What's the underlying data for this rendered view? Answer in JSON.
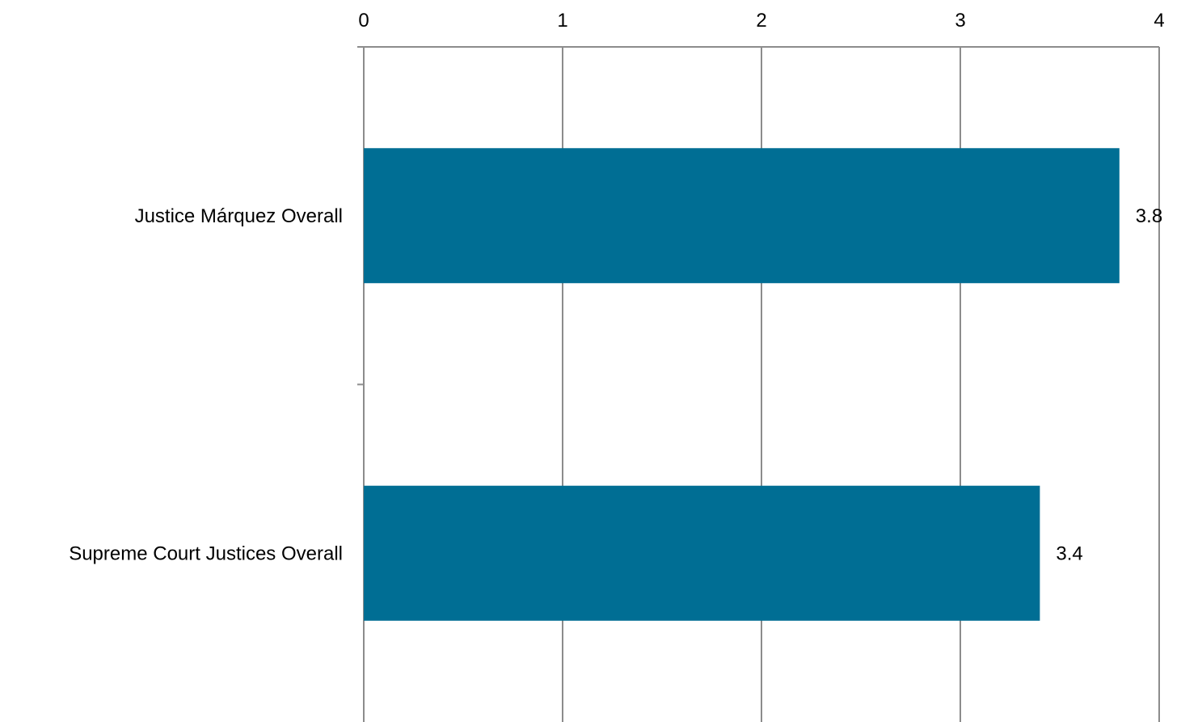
{
  "chart_data": {
    "type": "bar",
    "orientation": "horizontal",
    "categories": [
      "Justice Márquez Overall",
      "Supreme Court Justices Overall"
    ],
    "values": [
      3.8,
      3.4
    ],
    "data_labels": [
      "3.8",
      "3.4"
    ],
    "title": "",
    "xlabel": "",
    "ylabel": "",
    "xlim": [
      0,
      4
    ],
    "xticks": [
      "0",
      "1",
      "2",
      "3",
      "4"
    ],
    "x_axis_position": "top",
    "grid": true,
    "legend": "none",
    "bar_color": "#006e94",
    "grid_color": "#8c8c8c"
  }
}
